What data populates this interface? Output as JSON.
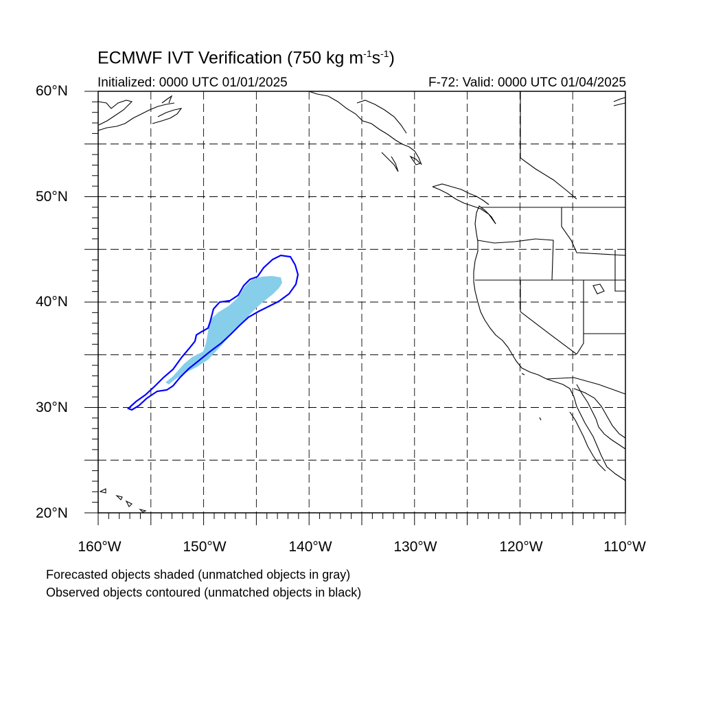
{
  "header": {
    "title_main": "ECMWF IVT Verification (750 kg m",
    "title_sup1": "-1",
    "title_mid": "s",
    "title_sup2": "-1",
    "title_end": ")",
    "initialized": "Initialized: 0000 UTC 01/01/2025",
    "valid": "F-72: Valid: 0000 UTC 01/04/2025"
  },
  "map": {
    "lon_range": [
      -160,
      -110
    ],
    "lat_range": [
      20,
      60
    ],
    "grid_spacing_deg": 5,
    "y_labels": [
      "60°N",
      "50°N",
      "40°N",
      "30°N",
      "20°N"
    ],
    "x_labels": [
      "160°W",
      "150°W",
      "140°W",
      "130°W",
      "120°W",
      "110°W"
    ],
    "colors": {
      "forecast_fill": "#87ceeb",
      "observed_contour": "#0000ff",
      "coastline": "#000000",
      "grid": "#000000"
    }
  },
  "legend": {
    "line1": "Forecasted objects shaded (unmatched objects in gray)",
    "line2": "Observed objects contoured (unmatched objects in black)"
  }
}
